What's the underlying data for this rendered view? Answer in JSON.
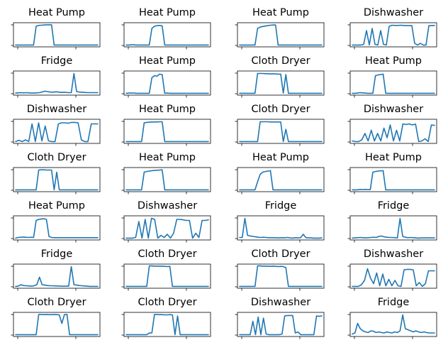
{
  "colors": {
    "series": "#1f77b4",
    "frame": "#000000",
    "background": "#ffffff"
  },
  "chart_data": [
    {
      "type": "line",
      "title": "Heat Pump",
      "ylim": [
        0,
        1
      ],
      "y": [
        0.02,
        0.02,
        0.02,
        0.02,
        0.02,
        0.02,
        0.02,
        0.02,
        0.9,
        0.94,
        0.95,
        0.96,
        0.97,
        0.97,
        0.97,
        0.02,
        0.02,
        0.02,
        0.02,
        0.02,
        0.02,
        0.02,
        0.02,
        0.02,
        0.02,
        0.02,
        0.02,
        0.02,
        0.02,
        0.02,
        0.02,
        0.02,
        0.02
      ]
    },
    {
      "type": "line",
      "title": "Heat Pump",
      "ylim": [
        0,
        1
      ],
      "y": [
        0.02,
        0.02,
        0.03,
        0.03,
        0.02,
        0.02,
        0.02,
        0.02,
        0.02,
        0.02,
        0.8,
        0.9,
        0.93,
        0.94,
        0.92,
        0.02,
        0.02,
        0.02,
        0.02,
        0.02,
        0.02,
        0.02,
        0.02,
        0.02,
        0.02,
        0.02,
        0.02,
        0.02,
        0.02,
        0.02,
        0.02,
        0.02,
        0.02
      ]
    },
    {
      "type": "line",
      "title": "Heat Pump",
      "ylim": [
        0,
        1
      ],
      "y": [
        0.02,
        0.02,
        0.02,
        0.02,
        0.02,
        0.02,
        0.02,
        0.8,
        0.86,
        0.89,
        0.91,
        0.93,
        0.95,
        0.96,
        0.96,
        0.02,
        0.02,
        0.02,
        0.02,
        0.02,
        0.02,
        0.02,
        0.02,
        0.02,
        0.02,
        0.02,
        0.02,
        0.02,
        0.02,
        0.02,
        0.02,
        0.02,
        0.02
      ]
    },
    {
      "type": "line",
      "title": "Dishwasher",
      "ylim": [
        0,
        1
      ],
      "y": [
        0.02,
        0.02,
        0.02,
        0.02,
        0.05,
        0.7,
        0.02,
        0.8,
        0.05,
        0.02,
        0.7,
        0.05,
        0.02,
        0.9,
        0.95,
        0.94,
        0.94,
        0.95,
        0.94,
        0.93,
        0.93,
        0.93,
        0.1,
        0.02,
        0.1,
        0.02,
        0.02,
        0.93,
        0.93,
        0.94
      ]
    },
    {
      "type": "line",
      "title": "Fridge",
      "ylim": [
        0,
        1
      ],
      "y": [
        0.03,
        0.04,
        0.05,
        0.04,
        0.05,
        0.04,
        0.03,
        0.03,
        0.04,
        0.05,
        0.08,
        0.12,
        0.1,
        0.08,
        0.07,
        0.09,
        0.08,
        0.06,
        0.07,
        0.06,
        0.05,
        0.05,
        0.95,
        0.1,
        0.08,
        0.07,
        0.06,
        0.05,
        0.05,
        0.05,
        0.05,
        0.05
      ]
    },
    {
      "type": "line",
      "title": "Heat Pump",
      "ylim": [
        0,
        1
      ],
      "y": [
        0.02,
        0.03,
        0.03,
        0.03,
        0.02,
        0.02,
        0.02,
        0.02,
        0.02,
        0.02,
        0.75,
        0.85,
        0.82,
        0.92,
        0.9,
        0.02,
        0.03,
        0.02,
        0.02,
        0.02,
        0.02,
        0.02,
        0.02,
        0.02,
        0.02,
        0.02,
        0.02,
        0.02,
        0.02,
        0.02,
        0.02,
        0.02,
        0.02
      ]
    },
    {
      "type": "line",
      "title": "Cloth Dryer",
      "ylim": [
        0,
        1
      ],
      "y": [
        0.02,
        0.02,
        0.02,
        0.02,
        0.02,
        0.02,
        0.02,
        0.95,
        0.95,
        0.95,
        0.94,
        0.94,
        0.93,
        0.93,
        0.93,
        0.92,
        0.92,
        0.03,
        0.9,
        0.02,
        0.02,
        0.02,
        0.02,
        0.02,
        0.02,
        0.02,
        0.02,
        0.02,
        0.02,
        0.02,
        0.02,
        0.02,
        0.02
      ]
    },
    {
      "type": "line",
      "title": "Heat Pump",
      "ylim": [
        0,
        1
      ],
      "y": [
        0.02,
        0.02,
        0.03,
        0.05,
        0.04,
        0.03,
        0.02,
        0.02,
        0.02,
        0.85,
        0.88,
        0.9,
        0.92,
        0.02,
        0.02,
        0.02,
        0.02,
        0.02,
        0.02,
        0.02,
        0.02,
        0.02,
        0.02,
        0.02,
        0.02,
        0.02,
        0.02,
        0.02,
        0.02,
        0.02,
        0.02,
        0.02,
        0.02
      ]
    },
    {
      "type": "line",
      "title": "Dishwasher",
      "ylim": [
        0,
        1
      ],
      "y": [
        0.02,
        0.08,
        0.02,
        0.1,
        0.02,
        0.85,
        0.02,
        0.9,
        0.05,
        0.75,
        0.05,
        0.02,
        0.02,
        0.85,
        0.9,
        0.9,
        0.88,
        0.92,
        0.92,
        0.9,
        0.1,
        0.02,
        0.02,
        0.85,
        0.85,
        0.85
      ]
    },
    {
      "type": "line",
      "title": "Heat Pump",
      "ylim": [
        0,
        1
      ],
      "y": [
        0.02,
        0.02,
        0.02,
        0.02,
        0.02,
        0.02,
        0.02,
        0.9,
        0.92,
        0.93,
        0.94,
        0.94,
        0.94,
        0.95,
        0.95,
        0.02,
        0.02,
        0.02,
        0.02,
        0.02,
        0.02,
        0.02,
        0.02,
        0.02,
        0.02,
        0.02,
        0.02,
        0.02,
        0.02,
        0.02,
        0.02,
        0.02,
        0.02
      ]
    },
    {
      "type": "line",
      "title": "Cloth Dryer",
      "ylim": [
        0,
        1
      ],
      "y": [
        0.02,
        0.02,
        0.02,
        0.02,
        0.02,
        0.02,
        0.02,
        0.02,
        0.95,
        0.95,
        0.95,
        0.95,
        0.94,
        0.94,
        0.94,
        0.94,
        0.94,
        0.02,
        0.6,
        0.02,
        0.02,
        0.02,
        0.02,
        0.02,
        0.02,
        0.02,
        0.02,
        0.02,
        0.02,
        0.02,
        0.02,
        0.02,
        0.02
      ]
    },
    {
      "type": "line",
      "title": "Dishwasher",
      "ylim": [
        0,
        1
      ],
      "y": [
        0.05,
        0.02,
        0.02,
        0.1,
        0.4,
        0.05,
        0.55,
        0.05,
        0.4,
        0.05,
        0.65,
        0.2,
        0.8,
        0.05,
        0.55,
        0.05,
        0.85,
        0.82,
        0.85,
        0.8,
        0.84,
        0.02,
        0.05,
        0.15,
        0.02,
        0.8,
        0.78
      ]
    },
    {
      "type": "line",
      "title": "Cloth Dryer",
      "ylim": [
        0,
        1
      ],
      "y": [
        0.02,
        0.02,
        0.02,
        0.02,
        0.02,
        0.02,
        0.02,
        0.02,
        0.02,
        0.95,
        0.96,
        0.96,
        0.95,
        0.95,
        0.95,
        0.02,
        0.85,
        0.02,
        0.02,
        0.02,
        0.02,
        0.02,
        0.02,
        0.02,
        0.02,
        0.02,
        0.02,
        0.02,
        0.02,
        0.02,
        0.02,
        0.02,
        0.02
      ]
    },
    {
      "type": "line",
      "title": "Heat Pump",
      "ylim": [
        0,
        1
      ],
      "y": [
        0.02,
        0.02,
        0.02,
        0.02,
        0.02,
        0.02,
        0.02,
        0.85,
        0.88,
        0.9,
        0.92,
        0.93,
        0.94,
        0.95,
        0.96,
        0.02,
        0.02,
        0.02,
        0.02,
        0.02,
        0.02,
        0.02,
        0.02,
        0.02,
        0.02,
        0.02,
        0.02,
        0.02,
        0.02,
        0.02,
        0.02,
        0.02,
        0.02
      ]
    },
    {
      "type": "line",
      "title": "Heat Pump",
      "ylim": [
        0,
        1
      ],
      "y": [
        0.02,
        0.02,
        0.02,
        0.02,
        0.02,
        0.02,
        0.02,
        0.4,
        0.75,
        0.85,
        0.88,
        0.9,
        0.92,
        0.02,
        0.02,
        0.02,
        0.02,
        0.02,
        0.02,
        0.02,
        0.02,
        0.02,
        0.02,
        0.02,
        0.02,
        0.02,
        0.02,
        0.02,
        0.02,
        0.02,
        0.02,
        0.02,
        0.02
      ]
    },
    {
      "type": "line",
      "title": "Heat Pump",
      "ylim": [
        0,
        1
      ],
      "y": [
        0.02,
        0.02,
        0.02,
        0.04,
        0.03,
        0.04,
        0.03,
        0.03,
        0.85,
        0.88,
        0.9,
        0.91,
        0.92,
        0.02,
        0.02,
        0.02,
        0.02,
        0.02,
        0.02,
        0.02,
        0.02,
        0.02,
        0.02,
        0.02,
        0.02,
        0.02,
        0.02,
        0.02,
        0.02,
        0.02,
        0.02,
        0.02,
        0.02
      ]
    },
    {
      "type": "line",
      "title": "Heat Pump",
      "ylim": [
        0,
        1
      ],
      "y": [
        0.02,
        0.05,
        0.06,
        0.07,
        0.06,
        0.05,
        0.06,
        0.05,
        0.85,
        0.9,
        0.92,
        0.93,
        0.9,
        0.1,
        0.05,
        0.04,
        0.04,
        0.04,
        0.04,
        0.04,
        0.04,
        0.04,
        0.04,
        0.04,
        0.04,
        0.04,
        0.04,
        0.04,
        0.04,
        0.04,
        0.04,
        0.04,
        0.04
      ]
    },
    {
      "type": "line",
      "title": "Dishwasher",
      "ylim": [
        0,
        1
      ],
      "y": [
        0.02,
        0.02,
        0.02,
        0.05,
        0.8,
        0.02,
        0.9,
        0.02,
        0.95,
        0.9,
        0.02,
        0.15,
        0.05,
        0.2,
        0.02,
        0.25,
        0.9,
        0.9,
        0.88,
        0.85,
        0.85,
        0.02,
        0.25,
        0.05,
        0.85,
        0.85,
        0.88
      ]
    },
    {
      "type": "line",
      "title": "Fridge",
      "ylim": [
        0,
        1
      ],
      "y": [
        0.05,
        0.05,
        0.95,
        0.15,
        0.12,
        0.1,
        0.08,
        0.06,
        0.05,
        0.06,
        0.05,
        0.04,
        0.04,
        0.04,
        0.03,
        0.03,
        0.04,
        0.03,
        0.05,
        0.03,
        0.02,
        0.04,
        0.03,
        0.04,
        0.2,
        0.04,
        0.03,
        0.03,
        0.02,
        0.02,
        0.02,
        0.03
      ]
    },
    {
      "type": "line",
      "title": "Fridge",
      "ylim": [
        0,
        1
      ],
      "y": [
        0.02,
        0.03,
        0.04,
        0.05,
        0.04,
        0.03,
        0.04,
        0.05,
        0.06,
        0.05,
        0.1,
        0.12,
        0.08,
        0.06,
        0.05,
        0.05,
        0.04,
        0.03,
        0.95,
        0.1,
        0.06,
        0.04,
        0.05,
        0.04,
        0.03,
        0.02,
        0.03,
        0.03,
        0.03,
        0.03,
        0.03,
        0.03
      ]
    },
    {
      "type": "line",
      "title": "Fridge",
      "ylim": [
        0,
        1
      ],
      "y": [
        0.02,
        0.03,
        0.1,
        0.06,
        0.05,
        0.04,
        0.03,
        0.05,
        0.1,
        0.45,
        0.1,
        0.08,
        0.06,
        0.05,
        0.05,
        0.04,
        0.04,
        0.03,
        0.03,
        0.03,
        0.03,
        0.95,
        0.1,
        0.08,
        0.06,
        0.05,
        0.04,
        0.03,
        0.02,
        0.02,
        0.02,
        0.02
      ]
    },
    {
      "type": "line",
      "title": "Cloth Dryer",
      "ylim": [
        0,
        1
      ],
      "y": [
        0.02,
        0.02,
        0.02,
        0.02,
        0.02,
        0.02,
        0.02,
        0.02,
        0.02,
        0.98,
        0.98,
        0.97,
        0.97,
        0.97,
        0.97,
        0.96,
        0.95,
        0.96,
        0.02,
        0.02,
        0.02,
        0.02,
        0.02,
        0.02,
        0.02,
        0.02,
        0.02,
        0.02,
        0.02,
        0.02,
        0.02,
        0.02,
        0.02
      ]
    },
    {
      "type": "line",
      "title": "Cloth Dryer",
      "ylim": [
        0,
        1
      ],
      "y": [
        0.02,
        0.02,
        0.02,
        0.02,
        0.02,
        0.02,
        0.02,
        0.98,
        0.98,
        0.97,
        0.97,
        0.97,
        0.96,
        0.97,
        0.96,
        0.95,
        0.96,
        0.95,
        0.9,
        0.02,
        0.02,
        0.02,
        0.02,
        0.02,
        0.02,
        0.02,
        0.02,
        0.02,
        0.02,
        0.02,
        0.02,
        0.02,
        0.02
      ]
    },
    {
      "type": "line",
      "title": "Dishwasher",
      "ylim": [
        0,
        1
      ],
      "y": [
        0.02,
        0.02,
        0.02,
        0.1,
        0.3,
        0.85,
        0.4,
        0.15,
        0.65,
        0.05,
        0.6,
        0.05,
        0.35,
        0.05,
        0.3,
        0.05,
        0.02,
        0.8,
        0.82,
        0.82,
        0.8,
        0.05,
        0.2,
        0.02,
        0.15,
        0.75,
        0.75,
        0.75
      ]
    },
    {
      "type": "line",
      "title": "Cloth Dryer",
      "ylim": [
        0,
        1
      ],
      "y": [
        0.02,
        0.02,
        0.02,
        0.02,
        0.02,
        0.02,
        0.02,
        0.02,
        0.02,
        0.97,
        0.97,
        0.96,
        0.97,
        0.96,
        0.96,
        0.97,
        0.96,
        0.95,
        0.55,
        0.96,
        0.97,
        0.02,
        0.02,
        0.02,
        0.02,
        0.02,
        0.02,
        0.02,
        0.02,
        0.02,
        0.02,
        0.02,
        0.02
      ]
    },
    {
      "type": "line",
      "title": "Cloth Dryer",
      "ylim": [
        0,
        1
      ],
      "y": [
        0.02,
        0.02,
        0.02,
        0.02,
        0.02,
        0.02,
        0.02,
        0.02,
        0.02,
        0.1,
        0.1,
        0.97,
        0.97,
        0.96,
        0.96,
        0.95,
        0.95,
        0.96,
        0.95,
        0.02,
        0.9,
        0.02,
        0.02,
        0.02,
        0.02,
        0.02,
        0.02,
        0.02,
        0.02,
        0.02,
        0.02,
        0.02,
        0.02
      ]
    },
    {
      "type": "line",
      "title": "Dishwasher",
      "ylim": [
        0,
        1
      ],
      "y": [
        0.02,
        0.02,
        0.02,
        0.02,
        0.02,
        0.65,
        0.02,
        0.85,
        0.02,
        0.8,
        0.05,
        0.02,
        0.02,
        0.02,
        0.02,
        0.02,
        0.05,
        0.9,
        0.92,
        0.92,
        0.92,
        0.1,
        0.15,
        0.02,
        0.02,
        0.02,
        0.02,
        0.02,
        0.02,
        0.9,
        0.88,
        0.9
      ]
    },
    {
      "type": "line",
      "title": "Fridge",
      "ylim": [
        0,
        1
      ],
      "y": [
        0.05,
        0.1,
        0.55,
        0.3,
        0.2,
        0.15,
        0.12,
        0.2,
        0.18,
        0.12,
        0.15,
        0.12,
        0.1,
        0.15,
        0.12,
        0.1,
        0.15,
        0.12,
        0.2,
        0.95,
        0.3,
        0.25,
        0.2,
        0.15,
        0.2,
        0.15,
        0.12,
        0.15,
        0.12,
        0.1,
        0.1,
        0.1
      ]
    }
  ]
}
